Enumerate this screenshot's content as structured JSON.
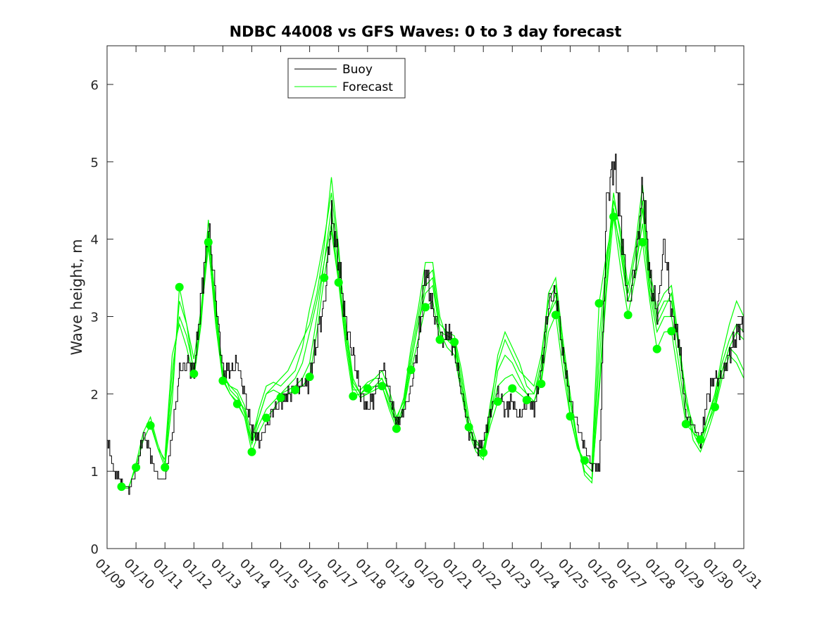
{
  "chart_data": {
    "type": "line",
    "title": "NDBC 44008 vs GFS Waves: 0 to 3 day forecast",
    "xlabel": "",
    "ylabel": "Wave height, m",
    "xlim": [
      9,
      31
    ],
    "ylim": [
      0,
      6.5
    ],
    "yticks": [
      0,
      1,
      2,
      3,
      4,
      5,
      6
    ],
    "ytick_labels": [
      "0",
      "1",
      "2",
      "3",
      "4",
      "5",
      "6"
    ],
    "xticks": [
      9,
      10,
      11,
      12,
      13,
      14,
      15,
      16,
      17,
      18,
      19,
      20,
      21,
      22,
      23,
      24,
      25,
      26,
      27,
      28,
      29,
      30,
      31
    ],
    "xtick_labels": [
      "01/09",
      "01/10",
      "01/11",
      "01/12",
      "01/13",
      "01/14",
      "01/15",
      "01/16",
      "01/17",
      "01/18",
      "01/19",
      "01/20",
      "01/21",
      "01/22",
      "01/23",
      "01/24",
      "01/25",
      "01/26",
      "01/27",
      "01/28",
      "01/29",
      "01/30",
      "01/31"
    ],
    "grid": false,
    "legend": {
      "position": "top-left",
      "entries": [
        "Buoy",
        "Forecast"
      ]
    },
    "colors": {
      "buoy": "#000000",
      "forecast": "#00ff00",
      "axes": "#262626"
    },
    "buoy": {
      "name": "Buoy",
      "x": [
        9.0,
        9.25,
        9.5,
        9.75,
        10.0,
        10.25,
        10.5,
        10.75,
        11.0,
        11.25,
        11.5,
        11.75,
        12.0,
        12.25,
        12.5,
        12.75,
        13.0,
        13.25,
        13.5,
        13.75,
        14.0,
        14.25,
        14.5,
        14.75,
        15.0,
        15.25,
        15.5,
        15.75,
        16.0,
        16.25,
        16.5,
        16.75,
        17.0,
        17.25,
        17.5,
        17.75,
        18.0,
        18.25,
        18.5,
        18.75,
        19.0,
        19.25,
        19.5,
        19.75,
        20.0,
        20.25,
        20.5,
        20.75,
        21.0,
        21.25,
        21.5,
        21.75,
        22.0,
        22.25,
        22.5,
        22.75,
        23.0,
        23.25,
        23.5,
        23.75,
        24.0,
        24.25,
        24.5,
        24.75,
        25.0,
        25.25,
        25.5,
        25.75,
        26.0,
        26.25,
        26.5,
        26.75,
        27.0,
        27.25,
        27.5,
        27.75,
        28.0,
        28.25,
        28.5,
        28.75,
        29.0,
        29.25,
        29.5,
        29.75,
        30.0,
        30.25,
        30.5,
        30.75,
        31.0
      ],
      "values": [
        1.4,
        1.0,
        0.85,
        0.75,
        1.0,
        1.5,
        1.2,
        0.9,
        0.9,
        1.5,
        2.3,
        2.4,
        2.3,
        3.3,
        4.2,
        3.2,
        2.3,
        2.3,
        2.4,
        2.0,
        1.5,
        1.4,
        1.6,
        1.8,
        1.9,
        2.0,
        2.1,
        2.1,
        2.2,
        2.7,
        3.2,
        4.3,
        3.7,
        2.9,
        2.5,
        2.0,
        1.8,
        2.0,
        2.4,
        2.0,
        1.6,
        1.8,
        2.1,
        2.7,
        3.6,
        3.1,
        2.7,
        2.8,
        2.6,
        2.0,
        1.5,
        1.3,
        1.4,
        1.8,
        2.0,
        1.8,
        1.9,
        1.7,
        1.9,
        1.8,
        2.3,
        3.2,
        3.3,
        2.5,
        1.9,
        1.6,
        1.3,
        1.1,
        1.0,
        4.5,
        5.0,
        4.2,
        3.1,
        3.7,
        4.7,
        3.5,
        3.0,
        4.0,
        3.0,
        2.7,
        1.7,
        1.6,
        1.4,
        2.0,
        2.2,
        2.2,
        2.5,
        2.8,
        2.9
      ]
    },
    "forecast_series": [
      {
        "name": "Forecast",
        "x": [
          9.5,
          9.75,
          10.0,
          10.25,
          10.5,
          10.75,
          11.0,
          11.25,
          11.5,
          11.75,
          12.0,
          12.25,
          12.5,
          12.75,
          13.0,
          13.25,
          13.5,
          13.75,
          14.0,
          14.25,
          14.5,
          14.75,
          15.0,
          15.25,
          15.5,
          15.75,
          16.0,
          16.25,
          16.5,
          16.75,
          17.0,
          17.25,
          17.5,
          17.75,
          18.0,
          18.25,
          18.5,
          18.75,
          19.0,
          19.25,
          19.5,
          19.75,
          20.0,
          20.25,
          20.5,
          20.75,
          21.0,
          21.25,
          21.5,
          21.75,
          22.0,
          22.25,
          22.5,
          22.75,
          23.0,
          23.25,
          23.5,
          23.75,
          24.0,
          24.25,
          24.5,
          24.75,
          25.0,
          25.25,
          25.5,
          25.75,
          26.0,
          26.25,
          26.5,
          26.75,
          27.0,
          27.25,
          27.5,
          27.75,
          28.0,
          28.25,
          28.5,
          28.75,
          29.0,
          29.25,
          29.5,
          29.75,
          30.0,
          30.25,
          30.5,
          30.75,
          31.0
        ],
        "values": [
          0.8,
          0.8,
          1.05,
          1.4,
          1.6,
          1.3,
          1.05,
          1.9,
          3.38,
          2.9,
          2.26,
          3.0,
          3.96,
          2.9,
          2.17,
          2.0,
          1.87,
          1.7,
          1.25,
          1.5,
          1.69,
          1.8,
          1.95,
          2.0,
          2.05,
          2.1,
          2.22,
          2.8,
          3.5,
          4.1,
          3.44,
          2.6,
          1.97,
          2.0,
          2.07,
          2.1,
          2.1,
          1.8,
          1.55,
          1.8,
          2.31,
          2.7,
          3.12,
          3.2,
          2.7,
          2.7,
          2.67,
          2.1,
          1.57,
          1.3,
          1.24,
          1.6,
          1.9,
          2.0,
          2.07,
          2.0,
          1.92,
          1.9,
          2.13,
          2.8,
          3.02,
          2.3,
          1.71,
          1.3,
          1.14,
          1.1,
          3.17,
          3.8,
          4.29,
          3.6,
          3.02,
          3.5,
          3.96,
          3.2,
          2.58,
          2.8,
          2.81,
          2.2,
          1.61,
          1.5,
          1.41,
          1.6,
          1.83,
          2.3,
          2.6,
          2.8,
          2.7
        ]
      },
      {
        "name": "Forecast",
        "x": [
          9.5,
          9.75,
          10.0,
          10.25,
          10.5,
          10.75,
          11.0,
          11.25,
          11.5,
          11.75,
          12.0,
          12.25,
          12.5,
          12.75,
          13.0,
          13.25,
          13.5,
          13.75,
          14.0,
          14.25,
          14.5,
          14.75,
          15.0,
          15.25,
          15.5,
          15.75,
          16.0,
          16.25,
          16.5,
          16.75,
          17.0,
          17.25,
          17.5,
          17.75,
          18.0,
          18.25,
          18.5,
          18.75,
          19.0,
          19.25,
          19.5,
          19.75,
          20.0,
          20.25,
          20.5,
          20.75,
          21.0,
          21.25,
          21.5,
          21.75,
          22.0,
          22.25,
          22.5,
          22.75,
          23.0,
          23.25,
          23.5,
          23.75,
          24.0,
          24.25,
          24.5,
          24.75,
          25.0,
          25.25,
          25.5,
          25.75,
          26.0,
          26.25,
          26.5,
          26.75,
          27.0,
          27.25,
          27.5,
          27.75,
          28.0,
          28.25,
          28.5,
          28.75,
          29.0,
          29.25,
          29.5,
          29.75,
          30.0,
          30.25,
          30.5,
          30.75,
          31.0
        ],
        "values": [
          0.78,
          0.78,
          1.1,
          1.5,
          1.7,
          1.35,
          1.1,
          2.1,
          3.2,
          2.9,
          2.45,
          3.1,
          4.1,
          3.0,
          2.3,
          2.05,
          1.95,
          1.8,
          1.35,
          1.6,
          1.8,
          1.9,
          2.0,
          2.05,
          2.1,
          2.2,
          2.4,
          3.0,
          3.7,
          4.4,
          3.6,
          2.7,
          2.05,
          2.05,
          2.15,
          2.2,
          2.2,
          1.9,
          1.6,
          1.85,
          2.4,
          2.9,
          3.3,
          3.4,
          2.8,
          2.75,
          2.7,
          2.2,
          1.6,
          1.35,
          1.3,
          1.7,
          2.1,
          2.2,
          2.25,
          2.1,
          2.0,
          2.0,
          2.3,
          3.0,
          3.2,
          2.5,
          1.75,
          1.3,
          1.1,
          1.0,
          2.7,
          3.7,
          4.4,
          3.8,
          3.2,
          3.6,
          4.2,
          3.3,
          2.8,
          3.0,
          3.0,
          2.4,
          1.7,
          1.5,
          1.4,
          1.7,
          1.95,
          2.4,
          2.7,
          2.9,
          2.8
        ]
      },
      {
        "name": "Forecast",
        "x": [
          10.5,
          10.75,
          11.0,
          11.25,
          11.5,
          11.75,
          12.0,
          12.25,
          12.5,
          12.75,
          13.0,
          13.25,
          13.5,
          13.75,
          14.0,
          14.25,
          14.5,
          14.75,
          15.0,
          15.25,
          15.5,
          15.75,
          16.0,
          16.25,
          16.5,
          16.75,
          17.0,
          17.25,
          17.5,
          17.75,
          18.0,
          18.25,
          18.5,
          18.75,
          19.0,
          19.25,
          19.5,
          19.75,
          20.0,
          20.25,
          20.5,
          20.75,
          21.0,
          21.25,
          21.5,
          21.75,
          22.0,
          22.25,
          22.5,
          22.75,
          23.0,
          23.25,
          23.5,
          23.75,
          24.0,
          24.25,
          24.5,
          24.75,
          25.0,
          25.25,
          25.5,
          25.75,
          26.0,
          26.25,
          26.5,
          26.75,
          27.0,
          27.25,
          27.5,
          27.75,
          28.0,
          28.25,
          28.5,
          28.75,
          29.0,
          29.25,
          29.5,
          29.75,
          30.0,
          30.25,
          30.5,
          30.75,
          31.0
        ],
        "values": [
          1.65,
          1.3,
          1.15,
          2.3,
          3.0,
          2.75,
          2.3,
          3.0,
          4.25,
          3.1,
          2.2,
          2.1,
          2.05,
          1.85,
          1.45,
          1.7,
          2.0,
          2.1,
          2.2,
          2.3,
          2.5,
          2.7,
          2.9,
          3.3,
          3.9,
          4.8,
          3.9,
          2.8,
          2.15,
          2.0,
          2.1,
          2.2,
          2.3,
          2.05,
          1.7,
          1.9,
          2.5,
          3.0,
          3.5,
          3.6,
          2.9,
          2.8,
          2.75,
          2.3,
          1.7,
          1.4,
          1.25,
          1.9,
          2.4,
          2.7,
          2.5,
          2.3,
          2.2,
          2.1,
          2.5,
          3.2,
          3.4,
          2.6,
          1.9,
          1.35,
          1.0,
          0.9,
          2.4,
          3.6,
          4.6,
          4.0,
          3.3,
          3.8,
          4.5,
          3.5,
          3.0,
          3.2,
          3.2,
          2.6,
          1.9,
          1.6,
          1.35,
          1.7,
          2.0,
          2.5,
          2.9,
          3.2,
          3.0
        ]
      },
      {
        "name": "Forecast",
        "x": [
          11.0,
          11.25,
          11.5,
          11.75,
          12.0,
          12.25,
          12.5,
          12.75,
          13.0,
          13.25,
          13.5,
          13.75,
          14.0,
          14.25,
          14.5,
          14.75,
          15.0,
          15.25,
          15.5,
          15.75,
          16.0,
          16.25,
          16.5,
          16.75,
          17.0,
          17.25,
          17.5,
          17.75,
          18.0,
          18.25,
          18.5,
          18.75,
          19.0,
          19.25,
          19.5,
          19.75,
          20.0,
          20.25,
          20.5,
          20.75,
          21.0,
          21.25,
          21.5,
          21.75,
          22.0,
          22.25,
          22.5,
          22.75,
          23.0,
          23.25,
          23.5,
          23.75,
          24.0,
          24.25,
          24.5,
          24.75,
          25.0,
          25.25,
          25.5,
          25.75,
          26.0,
          26.25,
          26.5,
          26.75,
          27.0,
          27.25,
          27.5,
          27.75,
          28.0,
          28.25,
          28.5,
          28.75,
          29.0,
          29.25,
          29.5,
          29.75,
          30.0,
          30.25,
          30.5,
          30.75,
          31.0
        ],
        "values": [
          1.2,
          2.5,
          2.9,
          2.6,
          2.2,
          2.9,
          4.1,
          3.2,
          2.25,
          2.1,
          2.0,
          1.75,
          1.4,
          1.8,
          2.1,
          2.15,
          2.1,
          2.2,
          2.3,
          2.6,
          3.1,
          3.5,
          4.0,
          4.6,
          3.8,
          2.9,
          2.2,
          2.0,
          2.0,
          2.1,
          2.2,
          1.95,
          1.65,
          1.95,
          2.6,
          3.1,
          3.7,
          3.7,
          3.0,
          2.7,
          2.6,
          2.1,
          1.6,
          1.3,
          1.2,
          1.8,
          2.5,
          2.8,
          2.6,
          2.4,
          2.1,
          2.0,
          2.4,
          3.3,
          3.5,
          2.7,
          2.0,
          1.4,
          0.95,
          0.85,
          2.1,
          3.4,
          4.5,
          4.1,
          3.4,
          3.9,
          4.7,
          3.6,
          3.1,
          3.3,
          3.4,
          2.7,
          2.0,
          1.5,
          1.3,
          1.6,
          1.9,
          2.3,
          2.6,
          2.5,
          2.3
        ]
      },
      {
        "name": "Forecast",
        "x": [
          12.0,
          12.25,
          12.5,
          12.75,
          13.0,
          13.25,
          13.5,
          13.75,
          14.0,
          14.25,
          14.5,
          14.75,
          15.0,
          15.25,
          15.5,
          15.75,
          16.0,
          16.25,
          16.5,
          16.75,
          17.0,
          17.25,
          17.5,
          17.75,
          18.0,
          18.25,
          18.5,
          18.75,
          19.0,
          19.25,
          19.5,
          19.75,
          20.0,
          20.25,
          20.5,
          20.75,
          21.0,
          21.25,
          21.5,
          21.75,
          22.0,
          22.25,
          22.5,
          22.75,
          23.0,
          23.25,
          23.5,
          23.75,
          24.0,
          24.25,
          24.5,
          24.75,
          25.0,
          25.25,
          25.5,
          25.75,
          26.0,
          26.25,
          26.5,
          26.75,
          27.0,
          27.25,
          27.5,
          27.75,
          28.0,
          28.25,
          28.5,
          28.75,
          29.0,
          29.25,
          29.5,
          29.75,
          30.0,
          30.25,
          30.5,
          30.75,
          31.0
        ],
        "values": [
          2.2,
          3.0,
          3.9,
          3.0,
          2.2,
          2.0,
          1.9,
          1.7,
          1.35,
          1.7,
          2.0,
          2.05,
          2.0,
          2.1,
          2.2,
          2.4,
          2.8,
          3.2,
          3.7,
          4.2,
          3.5,
          2.7,
          2.1,
          1.95,
          2.0,
          2.05,
          2.1,
          1.85,
          1.6,
          1.85,
          2.4,
          2.9,
          3.4,
          3.5,
          2.8,
          2.6,
          2.5,
          2.0,
          1.5,
          1.25,
          1.15,
          1.7,
          2.3,
          2.5,
          2.4,
          2.2,
          2.0,
          1.9,
          2.2,
          3.0,
          3.3,
          2.6,
          1.9,
          1.4,
          1.0,
          0.9,
          2.0,
          3.3,
          4.3,
          3.9,
          3.2,
          3.6,
          4.4,
          3.4,
          2.9,
          3.1,
          3.3,
          2.6,
          1.9,
          1.4,
          1.25,
          1.5,
          1.8,
          2.2,
          2.5,
          2.4,
          2.2
        ]
      }
    ],
    "markers": {
      "name": "Forecast",
      "x": [
        9.5,
        10.0,
        10.5,
        11.0,
        11.5,
        12.0,
        12.5,
        13.0,
        13.5,
        14.0,
        14.5,
        15.0,
        15.5,
        16.0,
        16.5,
        17.0,
        17.5,
        18.0,
        18.5,
        19.0,
        19.5,
        20.0,
        20.5,
        21.0,
        21.5,
        22.0,
        22.5,
        23.0,
        23.5,
        24.0,
        24.5,
        25.0,
        25.5,
        26.0,
        26.5,
        27.0,
        27.5,
        28.0,
        28.5,
        29.0,
        29.5,
        30.0
      ],
      "values": [
        0.8,
        1.05,
        1.59,
        1.05,
        3.38,
        2.26,
        3.96,
        2.17,
        1.87,
        1.25,
        1.69,
        1.95,
        2.05,
        2.22,
        3.5,
        3.44,
        1.97,
        2.07,
        2.1,
        1.55,
        2.31,
        3.12,
        2.7,
        2.67,
        1.57,
        1.24,
        1.9,
        2.07,
        1.92,
        2.13,
        3.02,
        1.71,
        1.14,
        3.17,
        4.29,
        3.02,
        3.96,
        2.58,
        2.81,
        1.61,
        1.41,
        1.83
      ]
    }
  }
}
